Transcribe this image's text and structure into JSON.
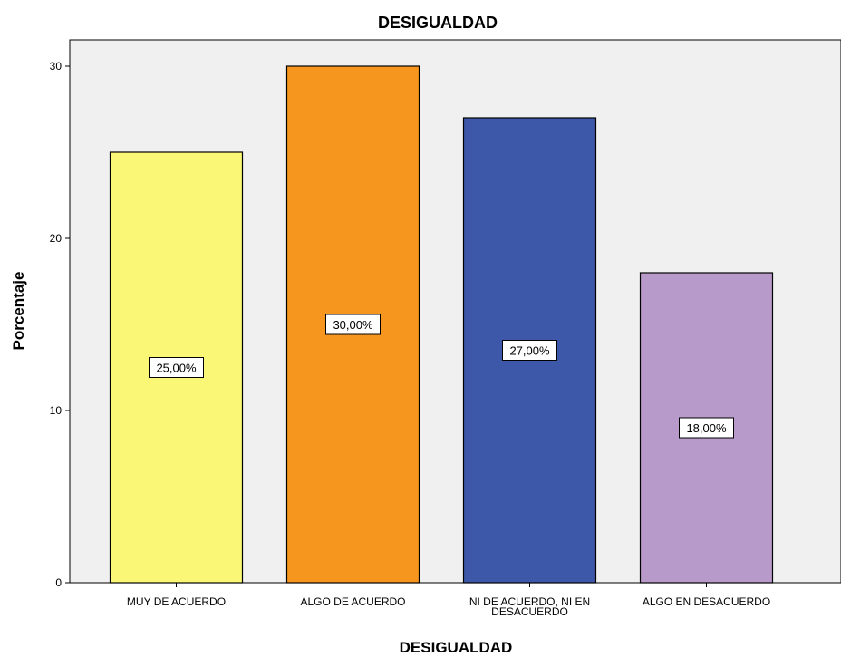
{
  "chart_data": {
    "type": "bar",
    "title": "DESIGUALDAD",
    "xlabel": "DESIGUALDAD",
    "ylabel": "Porcentaje",
    "categories": [
      [
        "MUY DE ACUERDO"
      ],
      [
        "ALGO DE ACUERDO"
      ],
      [
        "NI DE ACUERDO, NI EN",
        "DESACUERDO"
      ],
      [
        "ALGO EN DESACUERDO"
      ]
    ],
    "values": [
      25,
      30,
      27,
      18
    ],
    "data_labels": [
      "25,00%",
      "30,00%",
      "27,00%",
      "18,00%"
    ],
    "colors": [
      "#FAF777",
      "#F7961E",
      "#3D58A8",
      "#B89ACA"
    ],
    "ylim": [
      0,
      30
    ],
    "yticks": [
      0,
      10,
      20,
      30
    ],
    "grid": false,
    "legend": "none",
    "plot_background": "#F0F0F0"
  }
}
